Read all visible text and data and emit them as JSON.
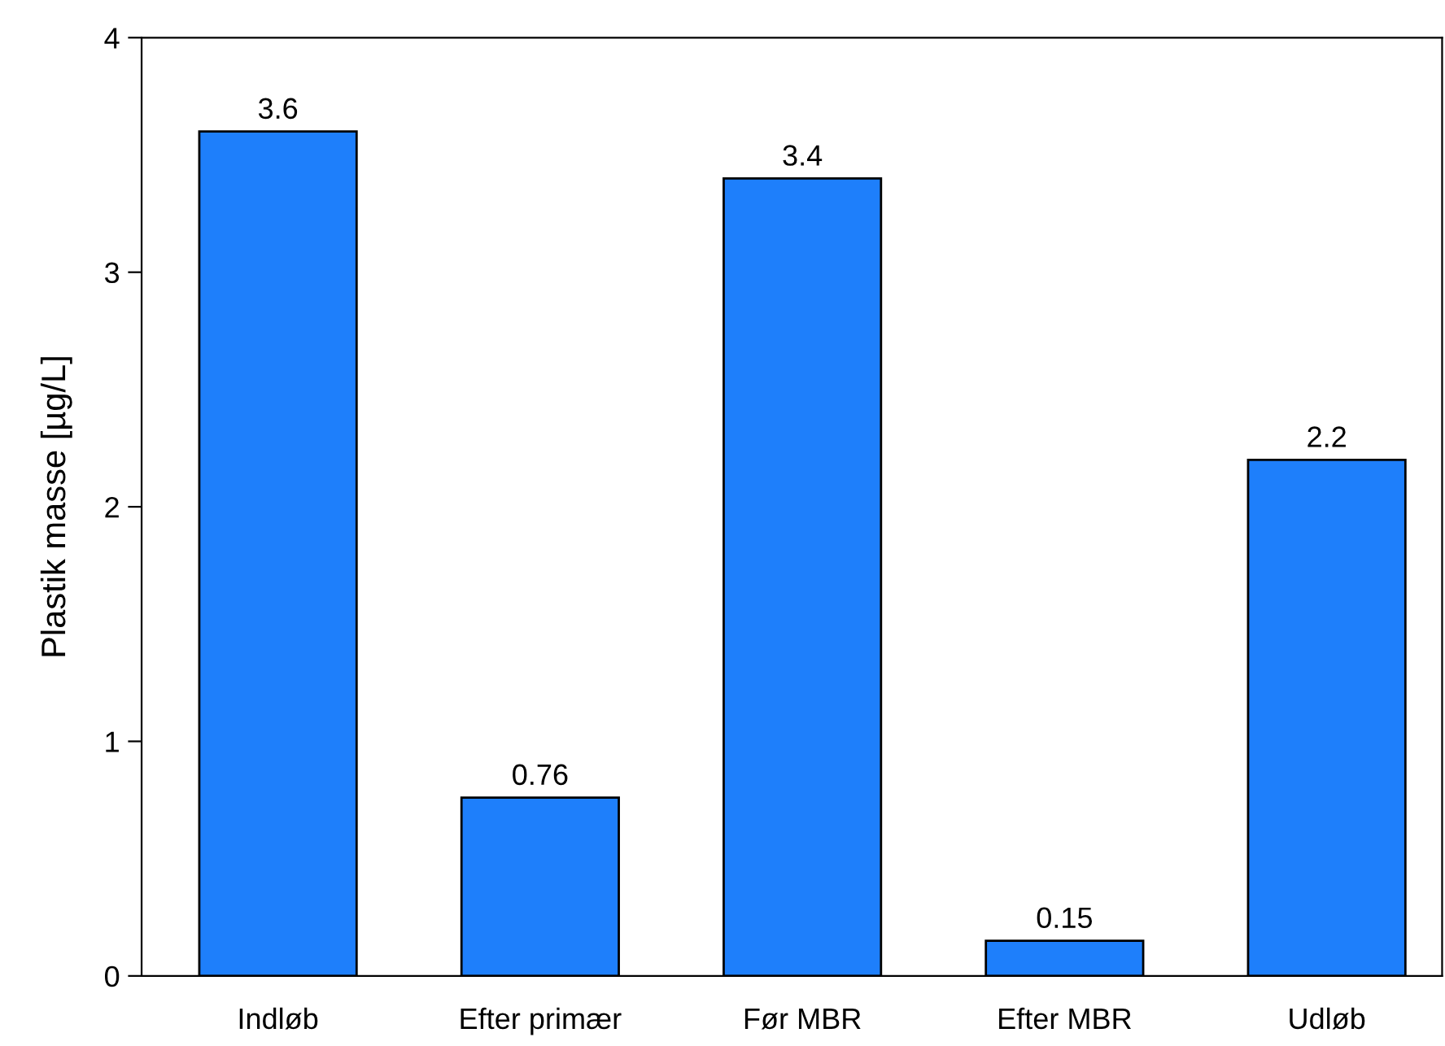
{
  "chart_data": {
    "type": "bar",
    "ylabel": "Plastik masse [µg/L]",
    "categories": [
      "Indløb",
      "Efter primær",
      "Før MBR",
      "Efter MBR",
      "Udløb"
    ],
    "values": [
      3.6,
      0.76,
      3.4,
      0.15,
      2.2
    ],
    "color": "#1e7ffb",
    "ylim": [
      0,
      4
    ],
    "yticks": [
      0,
      1,
      2,
      3,
      4
    ],
    "grid": false,
    "data_labels": true
  }
}
